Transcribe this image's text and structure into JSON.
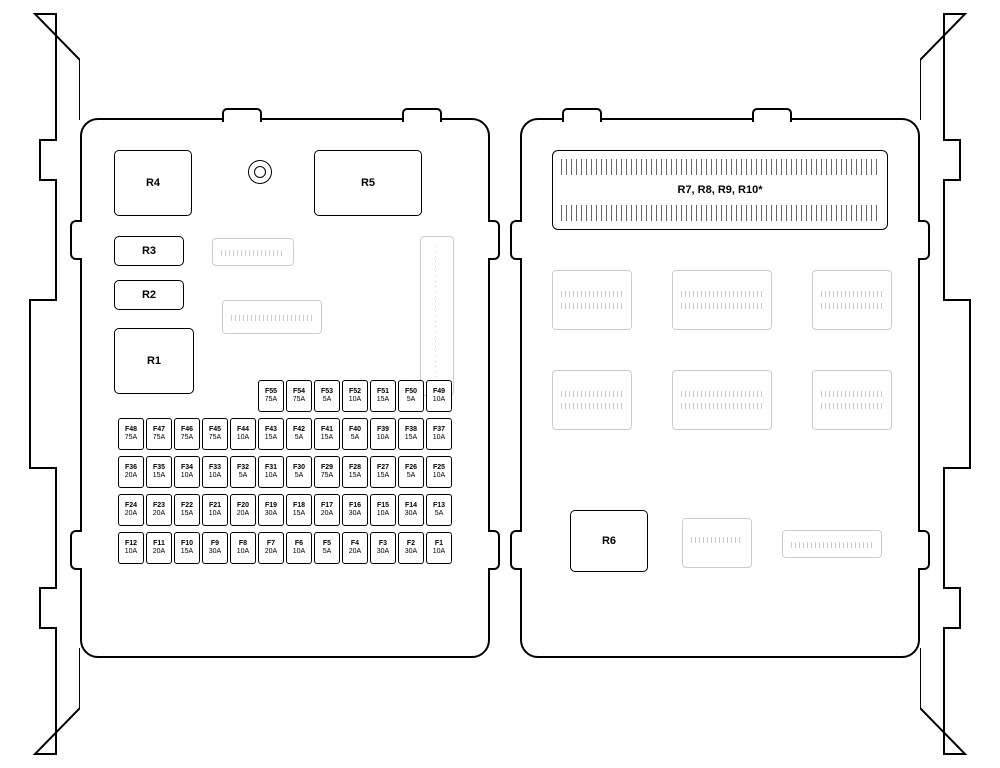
{
  "diagram": {
    "type": "fuse-box-diagram",
    "colors": {
      "stroke_primary": "#000000",
      "stroke_light": "#cccccc",
      "background": "#ffffff"
    },
    "relays": {
      "R1": "R1",
      "R2": "R2",
      "R3": "R3",
      "R4": "R4",
      "R5": "R5",
      "R6": "R6",
      "strip": "R7, R8, R9, R10*"
    },
    "fuses": {
      "row1": [
        {
          "n": "F49",
          "a": "10A"
        },
        {
          "n": "F50",
          "a": "5A"
        },
        {
          "n": "F51",
          "a": "15A"
        },
        {
          "n": "F52",
          "a": "10A"
        },
        {
          "n": "F53",
          "a": "5A"
        },
        {
          "n": "F54",
          "a": "75A"
        },
        {
          "n": "F55",
          "a": "75A"
        }
      ],
      "row2": [
        {
          "n": "F37",
          "a": "10A"
        },
        {
          "n": "F38",
          "a": "15A"
        },
        {
          "n": "F39",
          "a": "10A"
        },
        {
          "n": "F40",
          "a": "5A"
        },
        {
          "n": "F41",
          "a": "15A"
        },
        {
          "n": "F42",
          "a": "5A"
        },
        {
          "n": "F43",
          "a": "15A"
        },
        {
          "n": "F44",
          "a": "10A"
        },
        {
          "n": "F45",
          "a": "75A"
        },
        {
          "n": "F46",
          "a": "75A"
        },
        {
          "n": "F47",
          "a": "75A"
        },
        {
          "n": "F48",
          "a": "75A"
        }
      ],
      "row3": [
        {
          "n": "F25",
          "a": "10A"
        },
        {
          "n": "F26",
          "a": "5A"
        },
        {
          "n": "F27",
          "a": "15A"
        },
        {
          "n": "F28",
          "a": "15A"
        },
        {
          "n": "F29",
          "a": "75A"
        },
        {
          "n": "F30",
          "a": "5A"
        },
        {
          "n": "F31",
          "a": "10A"
        },
        {
          "n": "F32",
          "a": "5A"
        },
        {
          "n": "F33",
          "a": "10A"
        },
        {
          "n": "F34",
          "a": "10A"
        },
        {
          "n": "F35",
          "a": "15A"
        },
        {
          "n": "F36",
          "a": "20A"
        }
      ],
      "row4": [
        {
          "n": "F13",
          "a": "5A"
        },
        {
          "n": "F14",
          "a": "30A"
        },
        {
          "n": "F15",
          "a": "10A"
        },
        {
          "n": "F16",
          "a": "30A"
        },
        {
          "n": "F17",
          "a": "20A"
        },
        {
          "n": "F18",
          "a": "15A"
        },
        {
          "n": "F19",
          "a": "30A"
        },
        {
          "n": "F20",
          "a": "20A"
        },
        {
          "n": "F21",
          "a": "10A"
        },
        {
          "n": "F22",
          "a": "15A"
        },
        {
          "n": "F23",
          "a": "20A"
        },
        {
          "n": "F24",
          "a": "20A"
        }
      ],
      "row5": [
        {
          "n": "F1",
          "a": "10A"
        },
        {
          "n": "F2",
          "a": "30A"
        },
        {
          "n": "F3",
          "a": "30A"
        },
        {
          "n": "F4",
          "a": "20A"
        },
        {
          "n": "F5",
          "a": "5A"
        },
        {
          "n": "F6",
          "a": "10A"
        },
        {
          "n": "F7",
          "a": "20A"
        },
        {
          "n": "F8",
          "a": "10A"
        },
        {
          "n": "F9",
          "a": "30A"
        },
        {
          "n": "F10",
          "a": "15A"
        },
        {
          "n": "F11",
          "a": "20A"
        },
        {
          "n": "F12",
          "a": "10A"
        }
      ]
    }
  }
}
